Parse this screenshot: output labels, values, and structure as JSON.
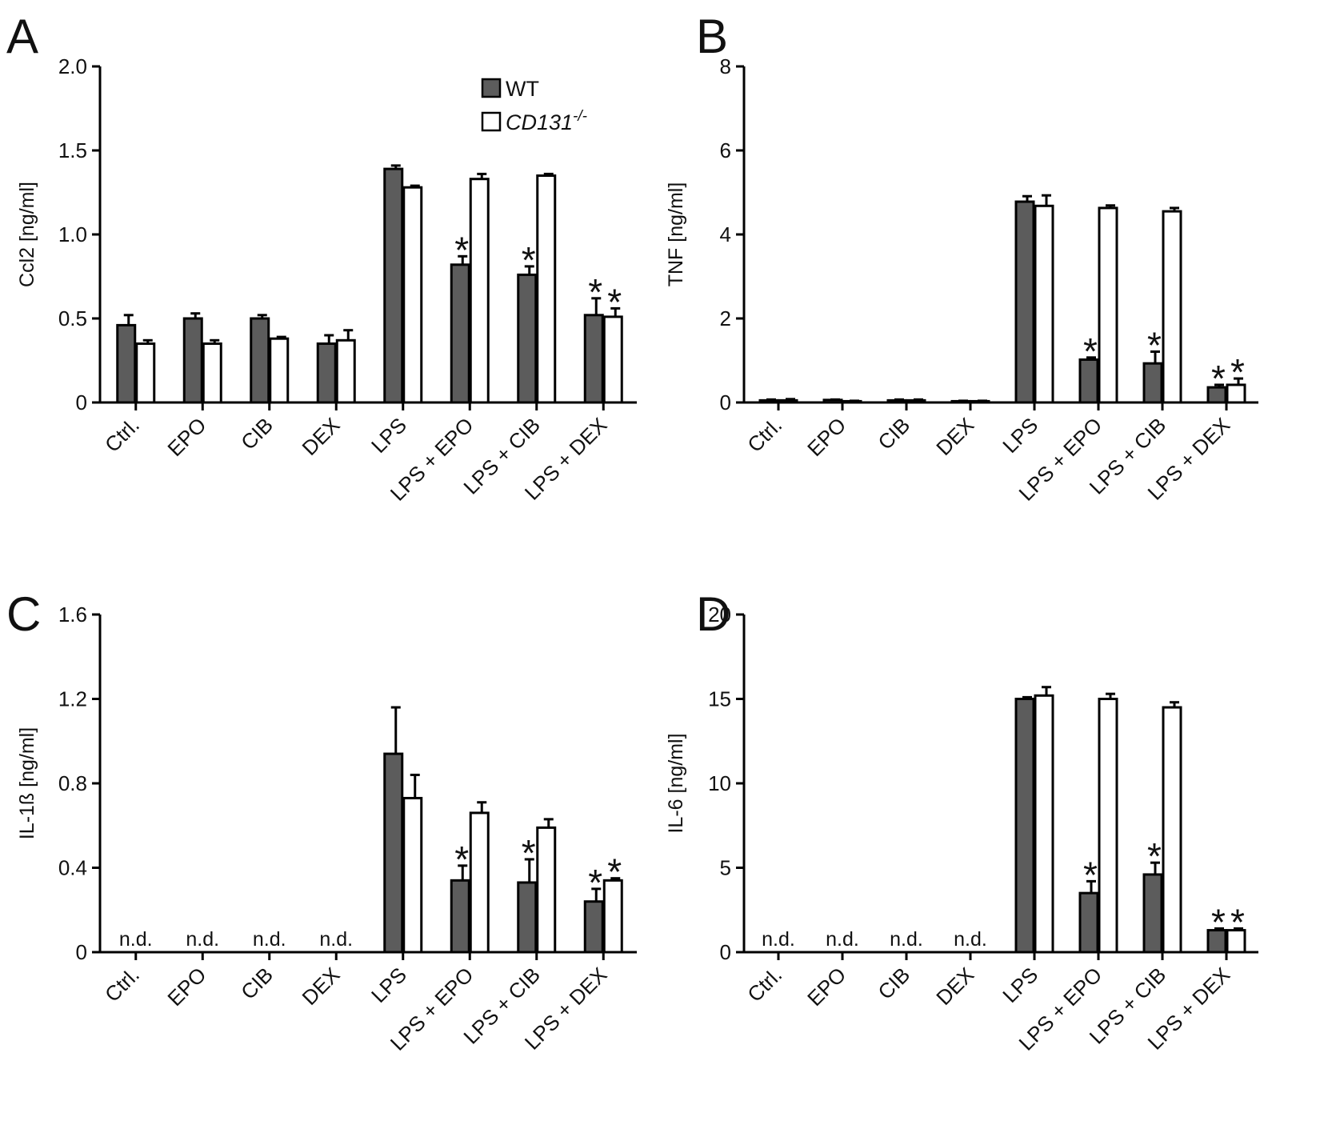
{
  "figure": {
    "legend": {
      "wt_label": "WT",
      "ko_label": "CD131",
      "ko_superscript": "-/-"
    },
    "significance_marker": "*",
    "not_detected_label": "n.d."
  },
  "colors": {
    "wt": "#5c5c5c",
    "ko": "#ffffff",
    "stroke": "#000000",
    "text": "#111111"
  },
  "chart_data": [
    {
      "type": "bar",
      "panel": "A",
      "ylabel": "Ccl2 [ng/ml]",
      "ylim": [
        0,
        2.0
      ],
      "ytick_labels": [
        "0",
        "0.5",
        "1.0",
        "1.5",
        "2.0"
      ],
      "categories": [
        "Ctrl.",
        "EPO",
        "CIB",
        "DEX",
        "LPS",
        "LPS + EPO",
        "LPS + CIB",
        "LPS + DEX"
      ],
      "series": [
        {
          "name": "WT",
          "values": [
            0.46,
            0.5,
            0.5,
            0.35,
            1.39,
            0.82,
            0.76,
            0.52
          ],
          "errors": [
            0.06,
            0.03,
            0.02,
            0.05,
            0.02,
            0.05,
            0.05,
            0.1
          ],
          "significant": [
            false,
            false,
            false,
            false,
            false,
            true,
            true,
            true
          ]
        },
        {
          "name": "CD131-/-",
          "values": [
            0.35,
            0.35,
            0.38,
            0.37,
            1.28,
            1.33,
            1.35,
            0.51
          ],
          "errors": [
            0.02,
            0.02,
            0.01,
            0.06,
            0.01,
            0.03,
            0.01,
            0.05
          ],
          "significant": [
            false,
            false,
            false,
            false,
            false,
            false,
            false,
            true
          ]
        }
      ]
    },
    {
      "type": "bar",
      "panel": "B",
      "ylabel": "TNF [ng/ml]",
      "ylim": [
        0,
        8
      ],
      "ytick_labels": [
        "0",
        "2",
        "4",
        "6",
        "8"
      ],
      "categories": [
        "Ctrl.",
        "EPO",
        "CIB",
        "DEX",
        "LPS",
        "LPS + EPO",
        "LPS + CIB",
        "LPS + DEX"
      ],
      "series": [
        {
          "name": "WT",
          "values": [
            0.05,
            0.06,
            0.05,
            0.03,
            4.78,
            1.02,
            0.93,
            0.36
          ],
          "errors": [
            0.02,
            0.01,
            0.02,
            0.01,
            0.13,
            0.05,
            0.28,
            0.06
          ],
          "significant": [
            false,
            false,
            false,
            false,
            false,
            true,
            true,
            true
          ]
        },
        {
          "name": "CD131-/-",
          "values": [
            0.05,
            0.03,
            0.05,
            0.03,
            4.68,
            4.63,
            4.55,
            0.42
          ],
          "errors": [
            0.03,
            0.01,
            0.02,
            0.01,
            0.25,
            0.06,
            0.08,
            0.15
          ],
          "significant": [
            false,
            false,
            false,
            false,
            false,
            false,
            false,
            true
          ]
        }
      ]
    },
    {
      "type": "bar",
      "panel": "C",
      "ylabel": "IL-1ß [ng/ml]",
      "ylim": [
        0,
        1.6
      ],
      "ytick_labels": [
        "0",
        "0.4",
        "0.8",
        "1.2",
        "1.6"
      ],
      "categories": [
        "Ctrl.",
        "EPO",
        "CIB",
        "DEX",
        "LPS",
        "LPS + EPO",
        "LPS + CIB",
        "LPS + DEX"
      ],
      "not_detected": [
        true,
        true,
        true,
        true,
        false,
        false,
        false,
        false
      ],
      "series": [
        {
          "name": "WT",
          "values": [
            0,
            0,
            0,
            0,
            0.94,
            0.34,
            0.33,
            0.24
          ],
          "errors": [
            0,
            0,
            0,
            0,
            0.22,
            0.07,
            0.11,
            0.06
          ],
          "significant": [
            false,
            false,
            false,
            false,
            false,
            true,
            true,
            true
          ]
        },
        {
          "name": "CD131-/-",
          "values": [
            0,
            0,
            0,
            0,
            0.73,
            0.66,
            0.59,
            0.34
          ],
          "errors": [
            0,
            0,
            0,
            0,
            0.11,
            0.05,
            0.04,
            0.01
          ],
          "significant": [
            false,
            false,
            false,
            false,
            false,
            false,
            false,
            true
          ]
        }
      ]
    },
    {
      "type": "bar",
      "panel": "D",
      "ylabel": "IL-6 [ng/ml]",
      "ylim": [
        0,
        20
      ],
      "ytick_labels": [
        "0",
        "5",
        "10",
        "15",
        "20"
      ],
      "categories": [
        "Ctrl.",
        "EPO",
        "CIB",
        "DEX",
        "LPS",
        "LPS + EPO",
        "LPS + CIB",
        "LPS + DEX"
      ],
      "not_detected": [
        true,
        true,
        true,
        true,
        false,
        false,
        false,
        false
      ],
      "series": [
        {
          "name": "WT",
          "values": [
            0,
            0,
            0,
            0,
            15.0,
            3.5,
            4.6,
            1.3
          ],
          "errors": [
            0,
            0,
            0,
            0,
            0.1,
            0.7,
            0.7,
            0.1
          ],
          "significant": [
            false,
            false,
            false,
            false,
            false,
            true,
            true,
            true
          ]
        },
        {
          "name": "CD131-/-",
          "values": [
            0,
            0,
            0,
            0,
            15.2,
            15.0,
            14.5,
            1.3
          ],
          "errors": [
            0,
            0,
            0,
            0,
            0.5,
            0.3,
            0.3,
            0.1
          ],
          "significant": [
            false,
            false,
            false,
            false,
            false,
            false,
            false,
            true
          ]
        }
      ]
    }
  ]
}
